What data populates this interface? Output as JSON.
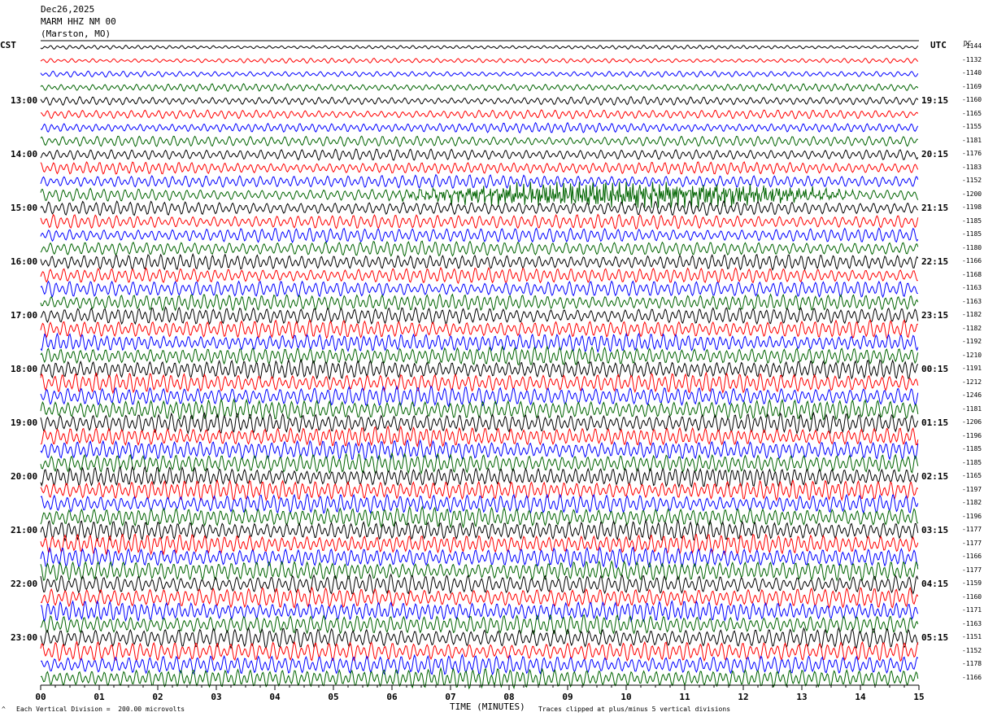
{
  "header": {
    "date": "Dec26,2025",
    "station": "MARM HHZ NM 00",
    "location": "(Marston, MO)"
  },
  "left_axis_title": "CST",
  "right_axis_title": "UTC",
  "dc_title": "DC",
  "footer": {
    "scale_note": "Each Vertical Division =  200.00 microvolts",
    "xlabel": "TIME (MINUTES)",
    "clip_note": "Traces clipped at plus/minus 5 vertical divisions",
    "corner_mark": "^"
  },
  "colors": {
    "trace_cycle": [
      "#000000",
      "#ff0000",
      "#0000ff",
      "#006400"
    ]
  },
  "chart_data": {
    "type": "line",
    "subtype": "helicorder",
    "x_range_minutes": [
      0,
      15
    ],
    "x_ticks": [
      "00",
      "01",
      "02",
      "03",
      "04",
      "05",
      "06",
      "07",
      "08",
      "09",
      "10",
      "11",
      "12",
      "13",
      "14",
      "15"
    ],
    "rows_per_hour": 4,
    "row_count": 48,
    "left_time_labels": [
      "13:00",
      "14:00",
      "15:00",
      "16:00",
      "17:00",
      "18:00",
      "19:00",
      "20:00",
      "21:00",
      "22:00",
      "23:00"
    ],
    "right_time_labels": [
      "19:15",
      "20:15",
      "21:15",
      "22:15",
      "23:15",
      "00:15",
      "01:15",
      "02:15",
      "03:15",
      "04:15",
      "05:15"
    ],
    "time_label_first_row": 4,
    "dc_offsets": [
      -1144,
      -1132,
      -1140,
      -1169,
      -1160,
      -1165,
      -1155,
      -1181,
      -1176,
      -1183,
      -1152,
      -1200,
      -1198,
      -1185,
      -1185,
      -1180,
      -1166,
      -1168,
      -1163,
      -1163,
      -1182,
      -1182,
      -1192,
      -1210,
      -1191,
      -1212,
      -1246,
      -1181,
      -1206,
      -1196,
      -1185,
      -1185,
      -1165,
      -1197,
      -1182,
      -1196,
      -1177,
      -1177,
      -1166,
      -1177,
      -1159,
      -1160,
      -1171,
      -1163,
      -1151,
      -1152,
      -1178,
      -1166
    ],
    "amplitude_divisions": [
      0.8,
      1.0,
      1.2,
      1.5,
      1.7,
      1.9,
      2.0,
      2.2,
      2.3,
      2.5,
      2.7,
      2.6,
      2.8,
      3.0,
      3.0,
      3.0,
      3.1,
      3.2,
      3.3,
      3.4,
      3.5,
      3.6,
      3.7,
      3.7,
      3.8,
      3.9,
      4.0,
      4.0,
      4.0,
      4.0,
      4.0,
      4.0,
      4.0,
      4.0,
      4.0,
      4.0,
      4.0,
      4.0,
      4.0,
      4.0,
      4.0,
      4.0,
      4.0,
      4.0,
      4.0,
      4.0,
      4.0,
      4.0
    ],
    "events": [
      {
        "row": 11,
        "start_minute": 5.8,
        "end_minute": 14.2,
        "amplitude_divisions": 5
      }
    ],
    "clip_divisions": 5,
    "division_microvolts": 200.0
  }
}
